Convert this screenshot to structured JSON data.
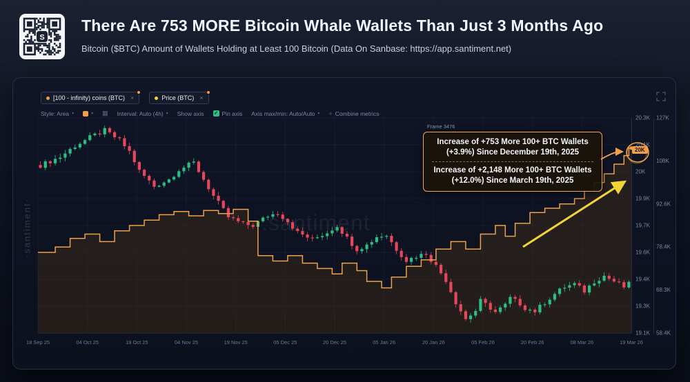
{
  "header": {
    "title": "There Are 753 MORE Bitcoin Whale Wallets Than Just 3 Months Ago",
    "subtitle": "Bitcoin ($BTC) Amount of Wallets Holding at Least 100 Bitcoin (Data On Sanbase: https://app.santiment.net)"
  },
  "panel": {
    "legend": [
      {
        "label": "[100 - infinity) coins (BTC)",
        "dot_color": "#f0a04b",
        "close_label": "×"
      },
      {
        "label": "Price (BTC)",
        "dot_color": "#f5d33f",
        "close_label": "×"
      }
    ],
    "toolbar": {
      "style": "Style: Area",
      "interval": "Interval: Auto (4h)",
      "show_axis": "Show axis",
      "pin_axis": "Pin axis",
      "pin_check": "✓",
      "axis_maxmin": "Axis max/min: Auto/Auto",
      "combine": "Combine metrics",
      "combine_plus": "+"
    },
    "frame_label": "Frame 3476",
    "annotation": {
      "line1": "Increase of +753 More 100+ BTC Wallets",
      "line2": "(+3.9%) Since December 19th, 2025",
      "line3": "Increase of +2,148 More 100+ BTC Wallets",
      "line4": "(+12.0%) Since March 19th, 2025"
    },
    "value_badge": "20K",
    "watermark_side": "·santiment·",
    "watermark_center": ".santiment"
  },
  "colors": {
    "up": "#2ebd85",
    "down": "#e6475a",
    "orange": "#f0a04b",
    "yellow": "#f2d438",
    "axis_text": "#7e87a0",
    "date_text": "#6e7995",
    "grid": "rgba(130,145,175,0.08)",
    "axis_line": "#242c42",
    "area_fill": "rgba(70,48,20,0.40)"
  },
  "chart_data": {
    "type": "mixed",
    "n_points": 120,
    "x_labels": [
      "18 Sep 25",
      "04 Oct 25",
      "19 Oct 25",
      "04 Nov 25",
      "19 Nov 25",
      "05 Dec 25",
      "20 Dec 25",
      "05 Jan 26",
      "20 Jan 26",
      "05 Feb 26",
      "20 Feb 26",
      "08 Mar 26",
      "19 Mar 26"
    ],
    "y_axis_wallets": {
      "min": 18.3,
      "max": 20.3,
      "unit": "K wallets",
      "labels": [
        "20.3K",
        "20.1K",
        "20K",
        "19.9K",
        "19.7K",
        "19.6K",
        "19.4K",
        "19.3K",
        "19.1K"
      ]
    },
    "y_axis_price": {
      "min": 55,
      "max": 132,
      "unit": "K USD",
      "labels": [
        "127K",
        "108K",
        "92.6K",
        "78.4K",
        "68.3K",
        "58.4K"
      ]
    },
    "series": [
      {
        "name": "[100 - infinity) coins (BTC)",
        "type": "step-area",
        "axis": "wallets",
        "color": "#f0a04b",
        "keypoints": [
          [
            0,
            19.05
          ],
          [
            3,
            19.1
          ],
          [
            6,
            19.18
          ],
          [
            9,
            19.22
          ],
          [
            12,
            19.15
          ],
          [
            15,
            19.25
          ],
          [
            18,
            19.3
          ],
          [
            21,
            19.35
          ],
          [
            24,
            19.4
          ],
          [
            27,
            19.43
          ],
          [
            30,
            19.39
          ],
          [
            33,
            19.44
          ],
          [
            36,
            19.41
          ],
          [
            39,
            19.45
          ],
          [
            42,
            19.34
          ],
          [
            44,
            19.02
          ],
          [
            47,
            18.97
          ],
          [
            50,
            19.02
          ],
          [
            53,
            18.95
          ],
          [
            56,
            18.9
          ],
          [
            59,
            18.85
          ],
          [
            61,
            18.95
          ],
          [
            64,
            18.88
          ],
          [
            66,
            18.78
          ],
          [
            69,
            18.72
          ],
          [
            71,
            18.82
          ],
          [
            74,
            18.92
          ],
          [
            77,
            18.98
          ],
          [
            80,
            19.08
          ],
          [
            83,
            19.15
          ],
          [
            86,
            19.08
          ],
          [
            89,
            19.22
          ],
          [
            92,
            19.3
          ],
          [
            94,
            19.2
          ],
          [
            96,
            19.32
          ],
          [
            99,
            19.42
          ],
          [
            102,
            19.46
          ],
          [
            105,
            19.5
          ],
          [
            108,
            19.55
          ],
          [
            110,
            19.62
          ],
          [
            112,
            19.7
          ],
          [
            114,
            19.78
          ],
          [
            116,
            19.87
          ],
          [
            118,
            19.95
          ],
          [
            119,
            20.02
          ]
        ]
      },
      {
        "name": "Price (BTC)",
        "type": "candlestick",
        "axis": "price",
        "up_color": "#2ebd85",
        "down_color": "#e6475a",
        "close_keypoints": [
          [
            0,
            115
          ],
          [
            4,
            118
          ],
          [
            7,
            122
          ],
          [
            10,
            125
          ],
          [
            13,
            127.5
          ],
          [
            16,
            124
          ],
          [
            18,
            120
          ],
          [
            20,
            113
          ],
          [
            23,
            107.5
          ],
          [
            26,
            110
          ],
          [
            28,
            113.5
          ],
          [
            31,
            116
          ],
          [
            33,
            110
          ],
          [
            35,
            104
          ],
          [
            38,
            96.5
          ],
          [
            41,
            94
          ],
          [
            43,
            93.5
          ],
          [
            46,
            97
          ],
          [
            48,
            98
          ],
          [
            50,
            95
          ],
          [
            52,
            91
          ],
          [
            55,
            88.5
          ],
          [
            58,
            91
          ],
          [
            60,
            93.5
          ],
          [
            62,
            89
          ],
          [
            64,
            85
          ],
          [
            66,
            86.5
          ],
          [
            68,
            89.5
          ],
          [
            70,
            90
          ],
          [
            72,
            85
          ],
          [
            74,
            81
          ],
          [
            76,
            82.5
          ],
          [
            78,
            83.5
          ],
          [
            80,
            79
          ],
          [
            82,
            74
          ],
          [
            84,
            66
          ],
          [
            86,
            60
          ],
          [
            88,
            63
          ],
          [
            89,
            66.5
          ],
          [
            91,
            64
          ],
          [
            92,
            62.5
          ],
          [
            94,
            65
          ],
          [
            95,
            67.5
          ],
          [
            97,
            65.5
          ],
          [
            98,
            64
          ],
          [
            100,
            62.8
          ],
          [
            102,
            66
          ],
          [
            104,
            69
          ],
          [
            106,
            71.5
          ],
          [
            108,
            72.5
          ],
          [
            110,
            70
          ],
          [
            112,
            73.5
          ],
          [
            114,
            75.5
          ],
          [
            116,
            73.5
          ],
          [
            118,
            71.5
          ],
          [
            119,
            72.5
          ]
        ]
      }
    ]
  }
}
